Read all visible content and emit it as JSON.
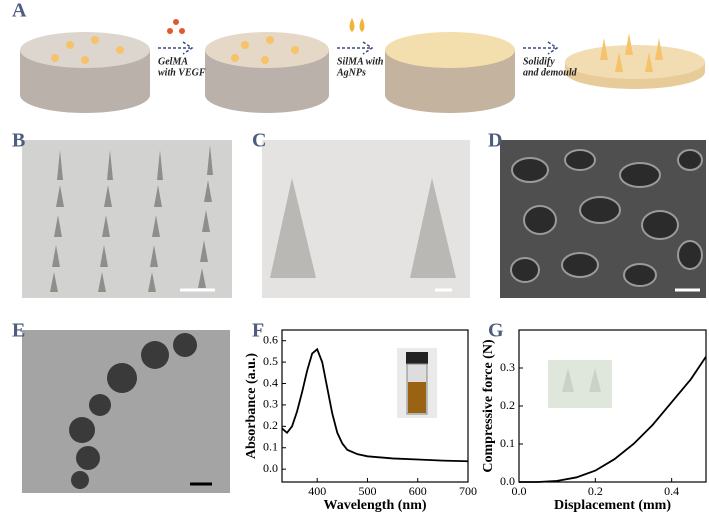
{
  "panel_labels": [
    "A",
    "B",
    "C",
    "D",
    "E",
    "F",
    "G"
  ],
  "schematic": {
    "steps": [
      {
        "lines": [
          "GelMA",
          "with VEGF"
        ]
      },
      {
        "lines": [
          "SilMA with",
          "AgNPs"
        ]
      },
      {
        "lines": [
          "Solidify",
          "and demould"
        ]
      }
    ]
  },
  "chart_data": [
    {
      "type": "line",
      "xlabel": "Wavelength (nm)",
      "ylabel": "Absorbance (a.u.)",
      "color": "#000000",
      "x": [
        330,
        340,
        350,
        360,
        370,
        380,
        390,
        400,
        410,
        420,
        430,
        440,
        450,
        460,
        480,
        500,
        550,
        600,
        650,
        700
      ],
      "values": [
        0.19,
        0.17,
        0.2,
        0.27,
        0.36,
        0.46,
        0.54,
        0.56,
        0.5,
        0.38,
        0.26,
        0.17,
        0.12,
        0.09,
        0.07,
        0.06,
        0.05,
        0.045,
        0.04,
        0.037
      ],
      "xlim": [
        330,
        700
      ],
      "ylim": [
        -0.06,
        0.65
      ],
      "xticks": [
        400,
        500,
        600,
        700
      ],
      "yticks": [
        {
          "value": 0,
          "label": "0.0"
        },
        0.1,
        0.2,
        0.3,
        0.4,
        0.5,
        0.6
      ]
    },
    {
      "type": "line",
      "xlabel": "Displacement (mm)",
      "ylabel": "Compressive force (N)",
      "color": "#000000",
      "x": [
        0,
        0.05,
        0.1,
        0.15,
        0.2,
        0.25,
        0.3,
        0.35,
        0.4,
        0.45,
        0.49
      ],
      "values": [
        0,
        0,
        0.003,
        0.012,
        0.03,
        0.06,
        0.1,
        0.15,
        0.21,
        0.27,
        0.33
      ],
      "xlim": [
        0,
        0.49
      ],
      "ylim": [
        0,
        0.4
      ],
      "xticks": [
        {
          "value": 0,
          "label": "0.0"
        },
        0.2,
        0.4
      ],
      "yticks": [
        {
          "value": 0,
          "label": "0.0"
        },
        0.1,
        0.2,
        0.3
      ]
    }
  ]
}
